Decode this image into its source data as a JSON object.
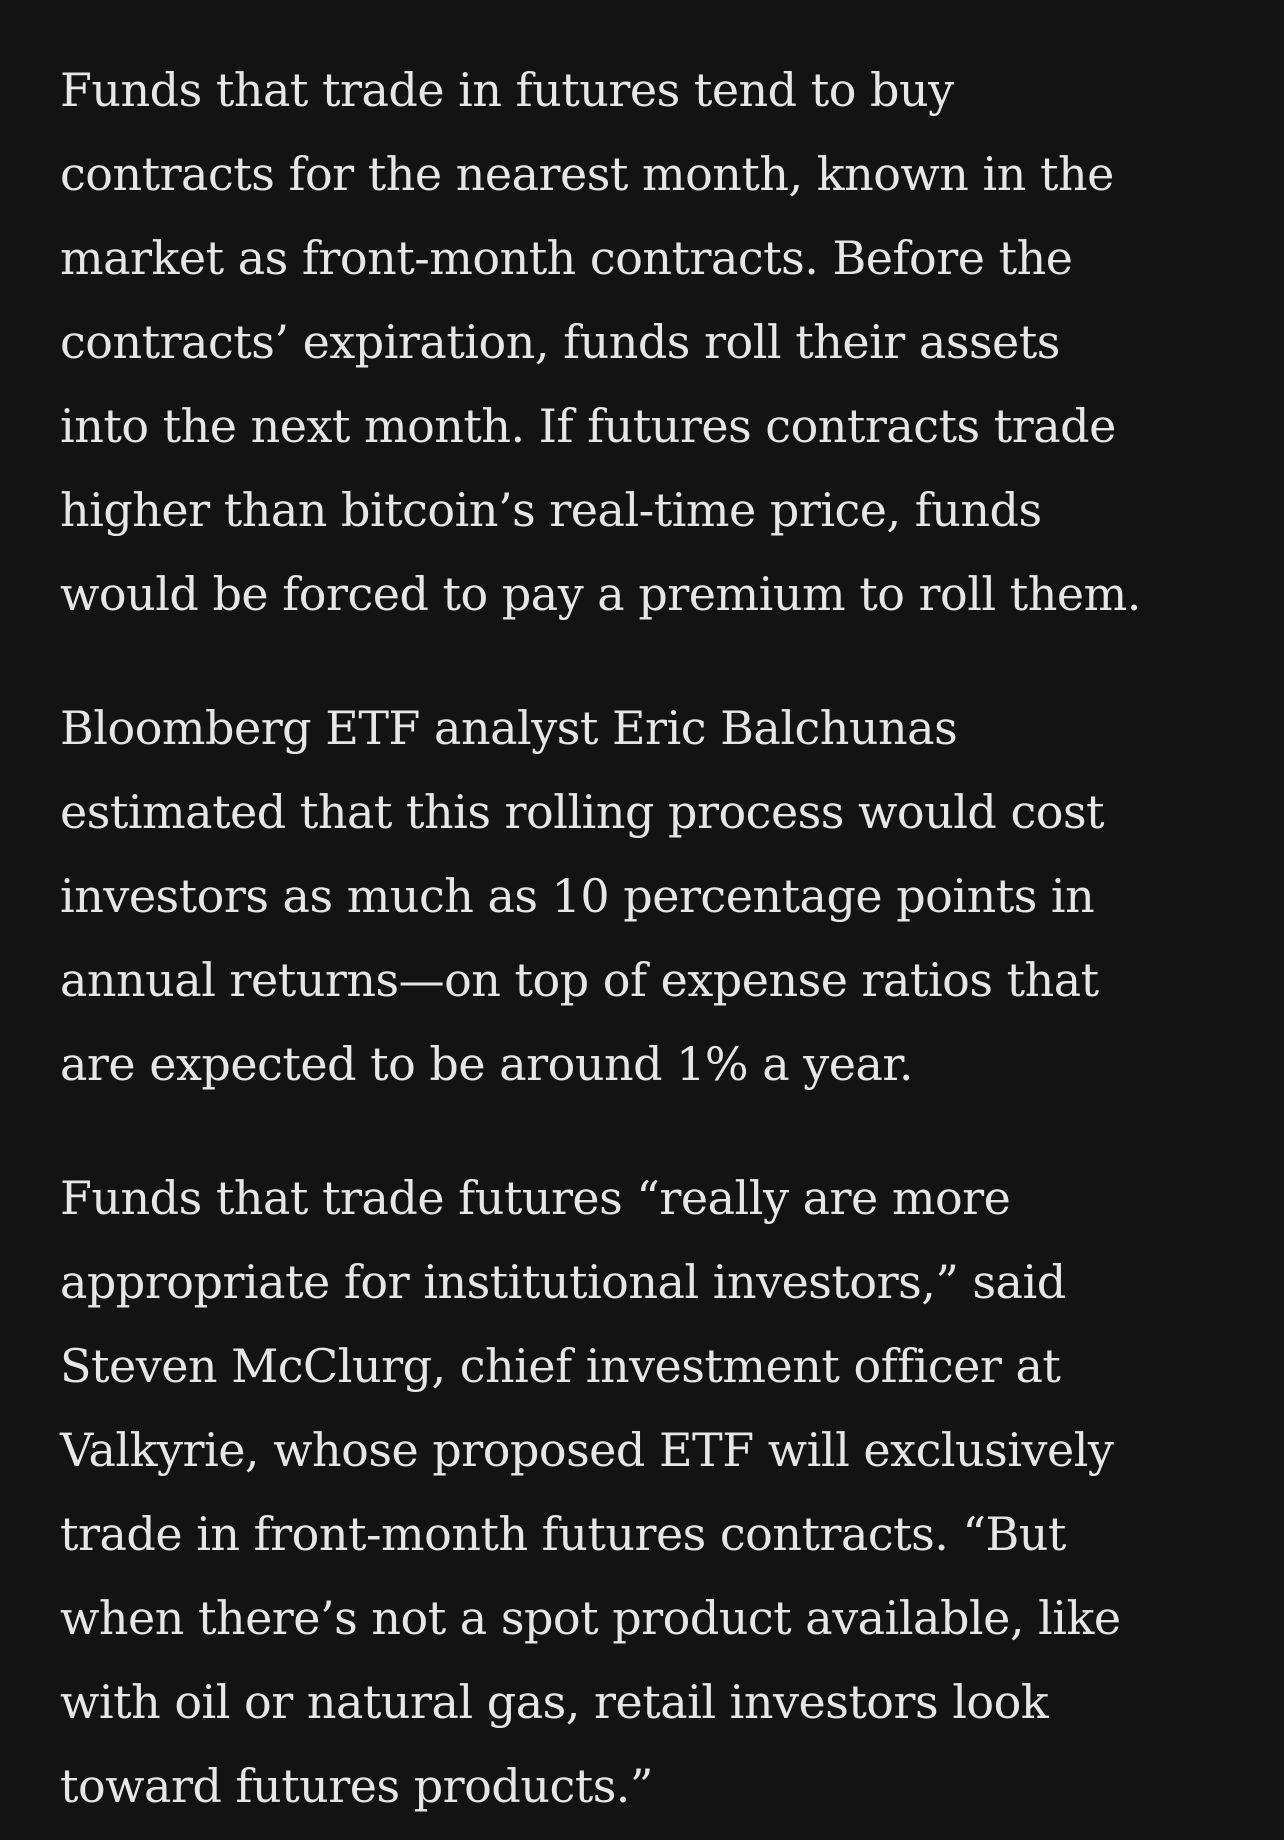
{
  "article": {
    "paragraphs": [
      {
        "lines": [
          "Funds that trade in futures tend to buy",
          "contracts for the nearest month, known in the",
          "market as front-month contracts. Before the",
          "contracts’ expiration, funds roll their assets",
          "into the next month. If futures contracts trade",
          "higher than bitcoin’s real-time price, funds",
          "would be forced to pay a premium to roll them."
        ]
      },
      {
        "lines": [
          "Bloomberg ETF analyst Eric Balchunas",
          "estimated that this rolling process would cost",
          "investors as much as 10 percentage points in",
          "annual returns—on top of expense ratios that",
          "are expected to be around 1% a year."
        ]
      },
      {
        "lines": [
          "Funds that trade futures “really are more",
          "appropriate for institutional investors,” said",
          "Steven McClurg, chief investment officer at",
          "Valkyrie, whose proposed ETF will exclusively",
          "trade in front-month futures contracts. “But",
          "when there’s not a spot product available, like",
          "with oil or natural gas, retail investors look",
          "toward futures products.”"
        ]
      }
    ]
  }
}
